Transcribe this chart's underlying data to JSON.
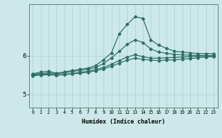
{
  "xlabel": "Humidex (Indice chaleur)",
  "bg_color": "#cce8e8",
  "line_color": "#2e6e65",
  "grid_color": "#aacfcf",
  "xlim": [
    -0.5,
    23.5
  ],
  "ylim": [
    4.65,
    7.35
  ],
  "yticks": [
    5,
    6
  ],
  "xticks": [
    0,
    1,
    2,
    3,
    4,
    5,
    6,
    7,
    8,
    9,
    10,
    11,
    12,
    13,
    14,
    15,
    16,
    17,
    18,
    19,
    20,
    21,
    22,
    23
  ],
  "series": [
    {
      "x": [
        0,
        1,
        2,
        3,
        4,
        5,
        6,
        7,
        8,
        9,
        10,
        11,
        12,
        13,
        14,
        15,
        16,
        17,
        18,
        19,
        20,
        21,
        22,
        23
      ],
      "y": [
        5.53,
        5.58,
        5.6,
        5.55,
        5.58,
        5.62,
        5.65,
        5.68,
        5.75,
        5.9,
        6.08,
        6.58,
        6.82,
        7.02,
        6.98,
        6.42,
        6.28,
        6.2,
        6.12,
        6.1,
        6.08,
        6.06,
        6.06,
        6.06
      ]
    },
    {
      "x": [
        0,
        1,
        2,
        3,
        4,
        5,
        6,
        7,
        8,
        9,
        10,
        11,
        12,
        13,
        14,
        15,
        16,
        17,
        18,
        19,
        20,
        21,
        22,
        23
      ],
      "y": [
        5.52,
        5.54,
        5.56,
        5.53,
        5.56,
        5.59,
        5.62,
        5.65,
        5.7,
        5.8,
        5.95,
        6.12,
        6.3,
        6.42,
        6.35,
        6.18,
        6.1,
        6.07,
        6.04,
        6.03,
        6.02,
        6.01,
        6.01,
        6.01
      ]
    },
    {
      "x": [
        0,
        1,
        2,
        3,
        4,
        5,
        6,
        7,
        8,
        9,
        10,
        11,
        12,
        13,
        14,
        15,
        16,
        17,
        18,
        19,
        20,
        21,
        22,
        23
      ],
      "y": [
        5.5,
        5.52,
        5.53,
        5.5,
        5.52,
        5.54,
        5.57,
        5.6,
        5.64,
        5.7,
        5.78,
        5.88,
        5.97,
        6.03,
        5.98,
        5.94,
        5.94,
        5.95,
        5.96,
        5.97,
        5.98,
        5.99,
        6.0,
        6.0
      ]
    },
    {
      "x": [
        0,
        1,
        2,
        3,
        4,
        5,
        6,
        7,
        8,
        9,
        10,
        11,
        12,
        13,
        14,
        15,
        16,
        17,
        18,
        19,
        20,
        21,
        22,
        23
      ],
      "y": [
        5.48,
        5.5,
        5.51,
        5.49,
        5.51,
        5.53,
        5.55,
        5.57,
        5.61,
        5.66,
        5.73,
        5.81,
        5.89,
        5.94,
        5.91,
        5.89,
        5.88,
        5.89,
        5.9,
        5.91,
        5.93,
        5.95,
        5.97,
        5.98
      ]
    }
  ]
}
